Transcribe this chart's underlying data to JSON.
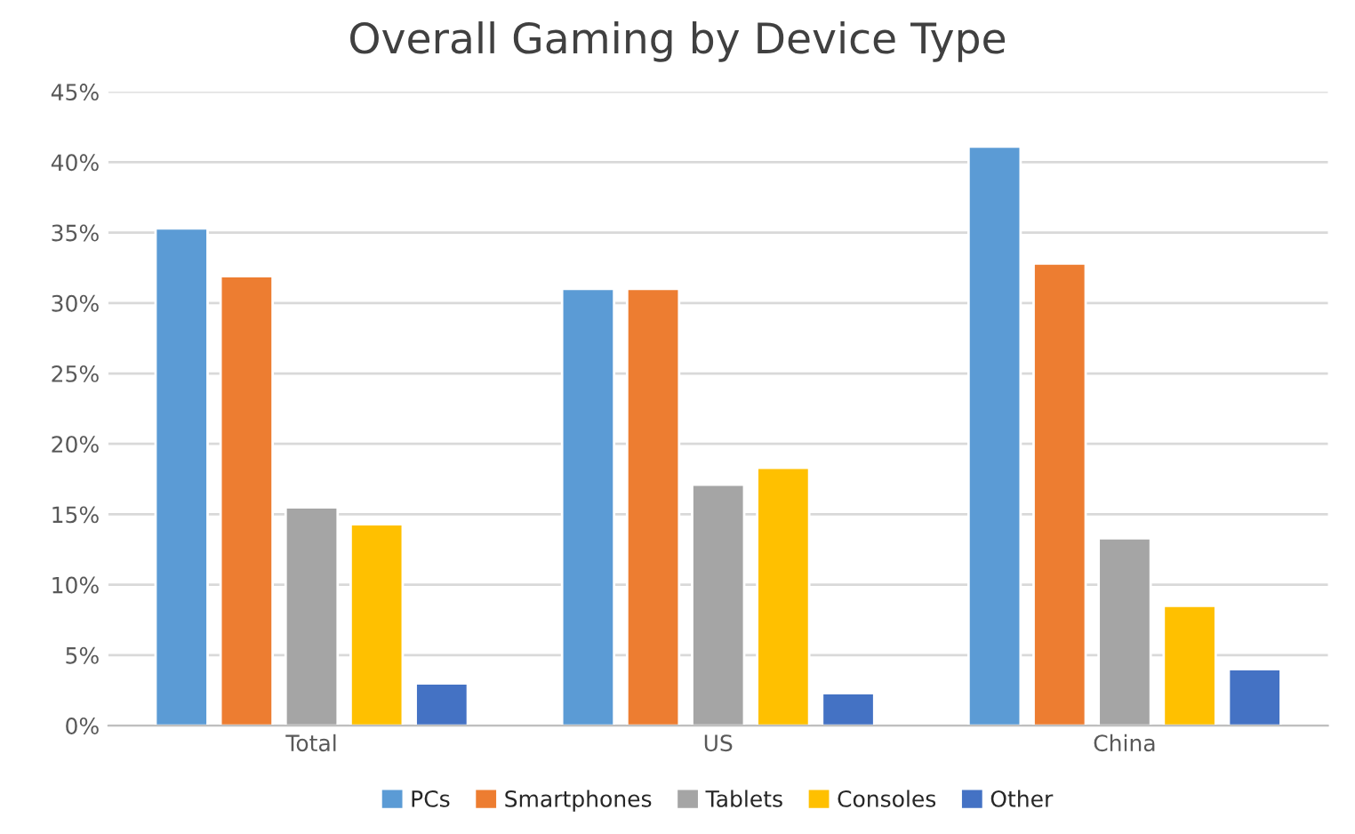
{
  "chart_data": {
    "type": "bar",
    "title": "Overall Gaming by Device Type",
    "categories": [
      "Total",
      "US",
      "China"
    ],
    "series": [
      {
        "name": "PCs",
        "color": "#5b9bd5",
        "values": [
          35.3,
          31.0,
          41.1
        ]
      },
      {
        "name": "Smartphones",
        "color": "#ed7d31",
        "values": [
          31.9,
          31.0,
          32.8
        ]
      },
      {
        "name": "Tablets",
        "color": "#a5a5a5",
        "values": [
          15.5,
          17.1,
          13.3
        ]
      },
      {
        "name": "Consoles",
        "color": "#ffc000",
        "values": [
          14.3,
          18.3,
          8.5
        ]
      },
      {
        "name": "Other",
        "color": "#4472c4",
        "values": [
          3.0,
          2.3,
          4.0
        ]
      }
    ],
    "ylim": [
      0,
      45
    ],
    "yticks": [
      {
        "value": 0,
        "label": "0%"
      },
      {
        "value": 5,
        "label": "5%"
      },
      {
        "value": 10,
        "label": "10%"
      },
      {
        "value": 15,
        "label": "15%"
      },
      {
        "value": 20,
        "label": "20%"
      },
      {
        "value": 25,
        "label": "25%"
      },
      {
        "value": 30,
        "label": "30%"
      },
      {
        "value": 35,
        "label": "35%"
      },
      {
        "value": 40,
        "label": "40%"
      },
      {
        "value": 45,
        "label": "45%"
      }
    ],
    "grid": "y",
    "legend": "bottom"
  }
}
